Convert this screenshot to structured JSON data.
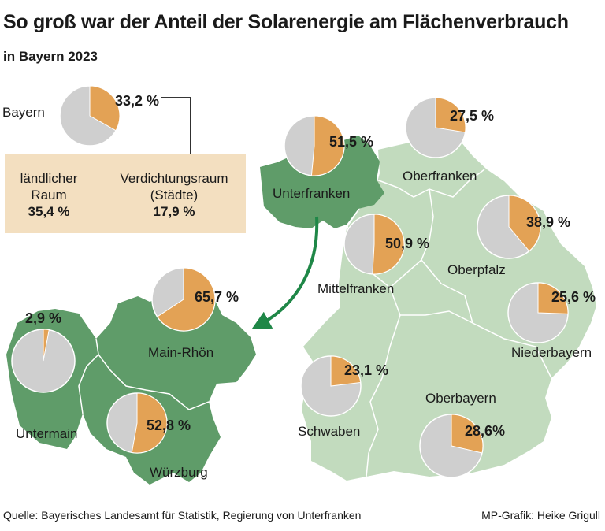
{
  "title": "So groß war der Anteil der Solarenergie am Flächenverbrauch",
  "subtitle": "in Bayern 2023",
  "colors": {
    "solar": "#e3a255",
    "rest": "#cfcfcf",
    "map_light": "#c2dbbe",
    "map_dark": "#5f9c69",
    "arrow": "#1f8747",
    "infobox": "#f3dfc0"
  },
  "bayern": {
    "name": "Bayern",
    "share": 33.2,
    "label": "33,2 %"
  },
  "infobox": {
    "rural_label_1": "ländlicher",
    "rural_label_2": "Raum",
    "rural_value": "35,4 %",
    "urban_label_1": "Verdichtungsraum",
    "urban_label_2": "(Städte)",
    "urban_value": "17,9 %"
  },
  "districts": [
    {
      "name": "Unterfranken",
      "share": 51.5,
      "label": "51,5 %"
    },
    {
      "name": "Oberfranken",
      "share": 27.5,
      "label": "27,5 %"
    },
    {
      "name": "Oberpfalz",
      "share": 38.9,
      "label": "38,9 %"
    },
    {
      "name": "Mittelfranken",
      "share": 50.9,
      "label": "50,9 %"
    },
    {
      "name": "Niederbayern",
      "share": 25.6,
      "label": "25,6 %"
    },
    {
      "name": "Schwaben",
      "share": 23.1,
      "label": "23,1 %"
    },
    {
      "name": "Oberbayern",
      "share": 28.6,
      "label": "28,6%"
    }
  ],
  "unterfranken_regions": [
    {
      "name": "Main-Rhön",
      "share": 65.7,
      "label": "65,7 %"
    },
    {
      "name": "Untermain",
      "share": 2.9,
      "label": "2,9 %"
    },
    {
      "name": "Würzburg",
      "share": 52.8,
      "label": "52,8 %"
    }
  ],
  "source": "Quelle: Bayerisches Landesamt für Statistik, Regierung von Unterfranken",
  "credit": "MP-Grafik: Heike Grigull"
}
